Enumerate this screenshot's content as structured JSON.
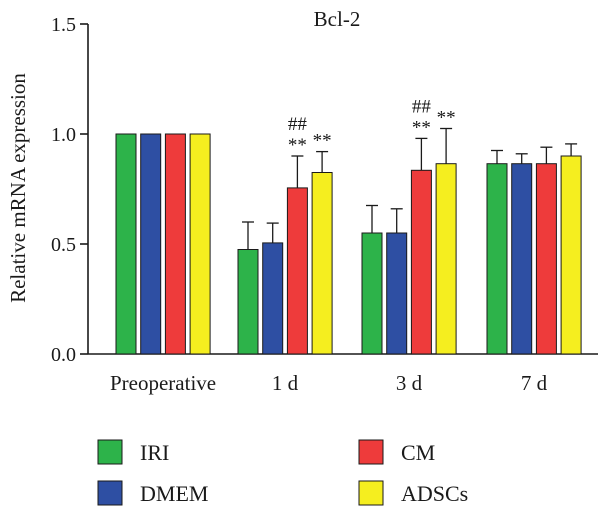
{
  "chart_data": {
    "type": "bar",
    "title": "Bcl-2",
    "xlabel": "",
    "ylabel": "Relative mRNA expression",
    "ylim": [
      0,
      1.5
    ],
    "yticks": [
      "0.0",
      "0.5",
      "1.0",
      "1.5"
    ],
    "categories": [
      "Preoperative",
      "1 d",
      "3 d",
      "7 d"
    ],
    "series": [
      {
        "name": "IRI",
        "color": "#2db34a",
        "values": [
          1.0,
          0.475,
          0.55,
          0.865
        ],
        "errors": [
          0,
          0.125,
          0.125,
          0.06
        ]
      },
      {
        "name": "DMEM",
        "color": "#2e4fa3",
        "values": [
          1.0,
          0.505,
          0.55,
          0.865
        ],
        "errors": [
          0,
          0.09,
          0.11,
          0.045
        ]
      },
      {
        "name": "CM",
        "color": "#ee3b3b",
        "values": [
          1.0,
          0.755,
          0.835,
          0.865
        ],
        "errors": [
          0,
          0.145,
          0.145,
          0.075
        ]
      },
      {
        "name": "ADSCs",
        "color": "#f5ee1f",
        "values": [
          1.0,
          0.825,
          0.865,
          0.9
        ],
        "errors": [
          0,
          0.095,
          0.16,
          0.055
        ]
      }
    ],
    "annotations": [
      {
        "category": 1,
        "series": 2,
        "lines": [
          "##",
          "**"
        ]
      },
      {
        "category": 1,
        "series": 3,
        "lines": [
          "**"
        ]
      },
      {
        "category": 2,
        "series": 2,
        "lines": [
          "##",
          "**"
        ]
      },
      {
        "category": 2,
        "series": 3,
        "lines": [
          "**"
        ]
      }
    ],
    "grid": false,
    "legend_position": "bottom"
  }
}
